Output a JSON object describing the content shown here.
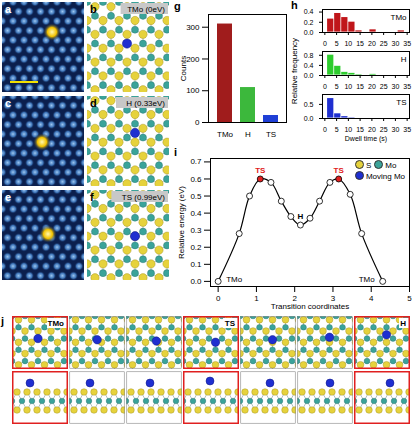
{
  "figure": {
    "stm_panels": [
      "a",
      "c",
      "e"
    ],
    "model_panels": [
      {
        "panel": "b",
        "label": "TMo (0eV)"
      },
      {
        "panel": "d",
        "label": "H (0.33eV)"
      },
      {
        "panel": "f",
        "label": "TS (0.99eV)"
      }
    ],
    "sequence": {
      "panel": "j",
      "frames": [
        "TMo",
        null,
        null,
        "TS",
        null,
        null,
        "H"
      ]
    }
  },
  "chart_data": [
    {
      "panel": "g",
      "type": "bar",
      "categories": [
        "TMo",
        "H",
        "TS"
      ],
      "values": [
        310,
        110,
        22
      ],
      "colors": [
        "#a01c1c",
        "#3cb83c",
        "#1f3fd6"
      ],
      "ylabel": "Counts",
      "ylim": [
        0,
        340
      ],
      "yticks": [
        0,
        100,
        200,
        300
      ]
    },
    {
      "panel": "h",
      "type": "histogram",
      "xlabel": "Dwell time (s)",
      "ylabel": "Relative frequency",
      "bins": [
        1,
        4,
        7,
        10,
        13,
        16,
        19,
        22,
        25,
        28,
        31,
        34
      ],
      "xlim": [
        -1,
        36
      ],
      "xticks": [
        0,
        5,
        10,
        15,
        20,
        25,
        30,
        35
      ],
      "series": [
        {
          "name": "TMo",
          "color": "#c0161a",
          "values": [
            0.27,
            0.38,
            0.3,
            0.21,
            0.04,
            0,
            0.06,
            0,
            0,
            0,
            0.04
          ],
          "ylim": [
            0,
            0.45
          ],
          "yticks": [
            {
              "value": 0,
              "label": "0.0"
            },
            0.2,
            0.4
          ]
        },
        {
          "name": "H",
          "color": "#2ecc2e",
          "values": [
            0.82,
            0.38,
            0.14,
            0.1,
            0.05,
            0,
            0.06,
            0,
            0,
            0,
            0
          ],
          "ylim": [
            0,
            0.95
          ],
          "yticks": [
            {
              "value": 0,
              "label": "0.0"
            },
            0.4,
            0.8
          ]
        },
        {
          "name": "TS",
          "color": "#1f2fd0",
          "values": [
            0.72,
            0.18,
            0.08,
            0.04,
            0,
            0,
            0,
            0,
            0,
            0,
            0
          ],
          "ylim": [
            0,
            0.85
          ],
          "yticks": [
            {
              "value": 0,
              "label": "0.0"
            },
            0.5
          ]
        }
      ]
    },
    {
      "panel": "i",
      "type": "line",
      "xlabel": "Transition coordinates",
      "ylabel": "Relative energy (eV)",
      "x": [
        0,
        0.55,
        0.82,
        1.1,
        1.38,
        1.65,
        1.9,
        2.15,
        2.4,
        2.65,
        2.92,
        3.15,
        3.45,
        3.75,
        4.3
      ],
      "values": [
        0,
        0.28,
        0.5,
        0.6,
        0.58,
        0.47,
        0.38,
        0.33,
        0.37,
        0.47,
        0.58,
        0.6,
        0.51,
        0.28,
        0
      ],
      "color": "#000000",
      "marker": "circle",
      "colors": [
        "#ffffff",
        "#ffffff",
        "#ffffff",
        "#e02020",
        "#ffffff",
        "#ffffff",
        "#ffffff",
        "#ffffff",
        "#ffffff",
        "#ffffff",
        "#ffffff",
        "#e02020",
        "#ffffff",
        "#ffffff",
        "#ffffff"
      ],
      "annotations": [
        {
          "x": 1.1,
          "y": 0.6,
          "text": "TS",
          "color": "#e02020"
        },
        {
          "x": 3.15,
          "y": 0.6,
          "text": "TS",
          "color": "#e02020"
        },
        {
          "x": 2.15,
          "y": 0.33,
          "text": "H",
          "color": "#000000"
        },
        {
          "x": 0,
          "y": 0,
          "text": "TMo",
          "color": "#000000"
        },
        {
          "x": 4.3,
          "y": 0,
          "text": "TMo",
          "color": "#000000"
        }
      ],
      "atoms": [
        {
          "name": "S",
          "color": "#e6d23c"
        },
        {
          "name": "Mo",
          "color": "#3aa39a"
        },
        {
          "name": "Moving Mo",
          "color": "#1f2fd0"
        }
      ],
      "legend": "top-right",
      "xlim": [
        -0.2,
        5
      ],
      "xticks": [
        0,
        1,
        2,
        3,
        4,
        5
      ],
      "ylim": [
        -0.03,
        0.72
      ],
      "yticks": [
        {
          "value": 0,
          "label": "0.0"
        },
        0.1,
        0.2,
        0.3,
        0.4,
        0.5,
        0.6,
        0.7
      ]
    }
  ]
}
